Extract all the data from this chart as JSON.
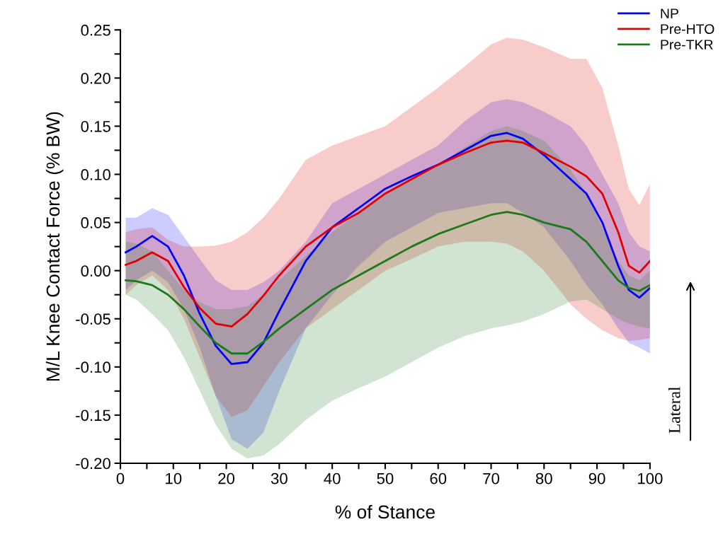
{
  "chart_data": {
    "type": "line",
    "xlabel": "% of Stance",
    "ylabel": "M/L Knee Contact Force (% BW)",
    "x": [
      1,
      3,
      6,
      9,
      12,
      15,
      18,
      21,
      24,
      27,
      30,
      35,
      40,
      45,
      50,
      55,
      60,
      65,
      70,
      73,
      76,
      80,
      85,
      88,
      91,
      94,
      96,
      98,
      100
    ],
    "series": [
      {
        "name": "NP",
        "color": "#0000ff",
        "values": [
          0.019,
          0.025,
          0.036,
          0.025,
          -0.005,
          -0.045,
          -0.078,
          -0.097,
          -0.095,
          -0.075,
          -0.042,
          0.01,
          0.045,
          0.065,
          0.085,
          0.098,
          0.11,
          0.125,
          0.14,
          0.143,
          0.137,
          0.12,
          0.095,
          0.08,
          0.05,
          0.005,
          -0.02,
          -0.028,
          -0.018
        ],
        "lower": [
          -0.02,
          -0.01,
          0.0,
          -0.012,
          -0.04,
          -0.08,
          -0.13,
          -0.175,
          -0.185,
          -0.168,
          -0.125,
          -0.06,
          -0.025,
          0.005,
          0.03,
          0.045,
          0.06,
          0.065,
          0.07,
          0.07,
          0.06,
          0.045,
          0.01,
          -0.015,
          -0.035,
          -0.06,
          -0.075,
          -0.08,
          -0.086
        ],
        "upper": [
          0.055,
          0.055,
          0.065,
          0.058,
          0.035,
          0.012,
          -0.01,
          -0.02,
          -0.02,
          -0.012,
          0.0,
          0.03,
          0.07,
          0.085,
          0.1,
          0.115,
          0.13,
          0.155,
          0.175,
          0.178,
          0.175,
          0.165,
          0.15,
          0.13,
          0.1,
          0.07,
          0.04,
          0.025,
          0.02
        ]
      },
      {
        "name": "Pre-HTO",
        "color": "#e00000",
        "values": [
          0.006,
          0.01,
          0.019,
          0.01,
          -0.017,
          -0.039,
          -0.055,
          -0.058,
          -0.045,
          -0.026,
          -0.005,
          0.025,
          0.045,
          0.06,
          0.08,
          0.095,
          0.11,
          0.122,
          0.133,
          0.135,
          0.133,
          0.122,
          0.108,
          0.098,
          0.08,
          0.04,
          0.005,
          -0.002,
          0.01
        ],
        "lower": [
          -0.025,
          -0.015,
          -0.005,
          -0.02,
          -0.05,
          -0.09,
          -0.13,
          -0.152,
          -0.145,
          -0.12,
          -0.095,
          -0.06,
          -0.04,
          -0.02,
          0.0,
          0.012,
          0.025,
          0.03,
          0.03,
          0.028,
          0.02,
          0.0,
          -0.035,
          -0.05,
          -0.062,
          -0.07,
          -0.073,
          -0.072,
          -0.07
        ],
        "upper": [
          0.04,
          0.043,
          0.045,
          0.032,
          0.025,
          0.025,
          0.026,
          0.03,
          0.04,
          0.055,
          0.075,
          0.115,
          0.13,
          0.14,
          0.15,
          0.17,
          0.19,
          0.212,
          0.235,
          0.242,
          0.24,
          0.232,
          0.22,
          0.22,
          0.19,
          0.13,
          0.085,
          0.068,
          0.09
        ]
      },
      {
        "name": "Pre-TKR",
        "color": "#1a7a1a",
        "values": [
          -0.01,
          -0.011,
          -0.015,
          -0.025,
          -0.04,
          -0.058,
          -0.075,
          -0.086,
          -0.086,
          -0.074,
          -0.06,
          -0.04,
          -0.02,
          -0.005,
          0.01,
          0.025,
          0.038,
          0.048,
          0.058,
          0.061,
          0.058,
          0.05,
          0.043,
          0.03,
          0.01,
          -0.01,
          -0.018,
          -0.021,
          -0.015
        ],
        "lower": [
          -0.025,
          -0.03,
          -0.045,
          -0.062,
          -0.09,
          -0.125,
          -0.16,
          -0.185,
          -0.195,
          -0.192,
          -0.18,
          -0.155,
          -0.135,
          -0.122,
          -0.11,
          -0.095,
          -0.08,
          -0.068,
          -0.06,
          -0.057,
          -0.053,
          -0.045,
          -0.032,
          -0.03,
          -0.04,
          -0.05,
          -0.055,
          -0.058,
          -0.06
        ],
        "upper": [
          0.03,
          0.028,
          0.02,
          0.0,
          -0.02,
          -0.033,
          -0.04,
          -0.04,
          -0.037,
          -0.025,
          -0.01,
          0.015,
          0.04,
          0.06,
          0.08,
          0.095,
          0.11,
          0.128,
          0.145,
          0.15,
          0.145,
          0.135,
          0.105,
          0.08,
          0.045,
          0.01,
          -0.005,
          -0.01,
          0.0
        ]
      }
    ],
    "xlim": [
      0,
      100
    ],
    "xticks": [
      0,
      {
        "value": 5,
        "label": null
      },
      10,
      {
        "value": 15,
        "label": null
      },
      20,
      {
        "value": 25,
        "label": null
      },
      30,
      {
        "value": 35,
        "label": null
      },
      40,
      {
        "value": 45,
        "label": null
      },
      50,
      {
        "value": 55,
        "label": null
      },
      60,
      {
        "value": 65,
        "label": null
      },
      70,
      {
        "value": 75,
        "label": null
      },
      80,
      {
        "value": 85,
        "label": null
      },
      90,
      {
        "value": 95,
        "label": null
      },
      100
    ],
    "ylim": [
      -0.2,
      0.25
    ],
    "yticks": [
      {
        "value": -0.2,
        "label": "-0.20"
      },
      {
        "value": -0.175,
        "label": null
      },
      {
        "value": -0.15,
        "label": "-0.15"
      },
      {
        "value": -0.125,
        "label": null
      },
      {
        "value": -0.1,
        "label": "-0.10"
      },
      {
        "value": -0.075,
        "label": null
      },
      {
        "value": -0.05,
        "label": "-0.05"
      },
      {
        "value": -0.025,
        "label": null
      },
      {
        "value": 0.0,
        "label": "0.00"
      },
      {
        "value": 0.025,
        "label": null
      },
      {
        "value": 0.05,
        "label": "0.05"
      },
      {
        "value": 0.075,
        "label": null
      },
      {
        "value": 0.1,
        "label": "0.10"
      },
      {
        "value": 0.125,
        "label": null
      },
      {
        "value": 0.15,
        "label": "0.15"
      },
      {
        "value": 0.175,
        "label": null
      },
      {
        "value": 0.2,
        "label": "0.20"
      },
      {
        "value": 0.225,
        "label": null
      },
      {
        "value": 0.25,
        "label": "0.25"
      }
    ],
    "annotations": [
      "Lateral"
    ],
    "legend": "top right",
    "grid": false,
    "line_style": "solid",
    "marker": "none"
  }
}
